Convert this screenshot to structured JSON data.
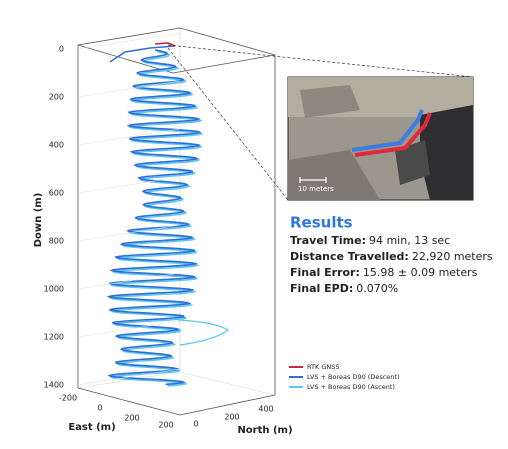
{
  "plot": {
    "y_label": "Down (m)",
    "y_ticks": [
      "0",
      "200",
      "400",
      "600",
      "800",
      "1000",
      "1200",
      "1400"
    ],
    "x_label": "East (m)",
    "x_ticks": [
      "-200",
      "0",
      "200",
      "200"
    ],
    "z_label": "North (m)",
    "z_ticks": [
      "0",
      "200",
      "400"
    ]
  },
  "inset": {
    "scale_label": "10 meters"
  },
  "results": {
    "title": "Results",
    "lines": [
      {
        "label": "Travel Time:",
        "value": "94 min, 13 sec"
      },
      {
        "label": "Distance Travelled:",
        "value": "22,920 meters"
      },
      {
        "label": "Final Error:",
        "value": "15.98 ± 0.09 meters"
      },
      {
        "label": "Final EPD:",
        "value": "0.070%"
      }
    ]
  },
  "legend": [
    {
      "name": "RTK GNSS",
      "color": "#d8233f"
    },
    {
      "name": "LVS + Boreas D90 (Descent)",
      "color": "#2f6fd6"
    },
    {
      "name": "LVS + Boreas D90 (Ascent)",
      "color": "#5cc6ee"
    }
  ]
}
